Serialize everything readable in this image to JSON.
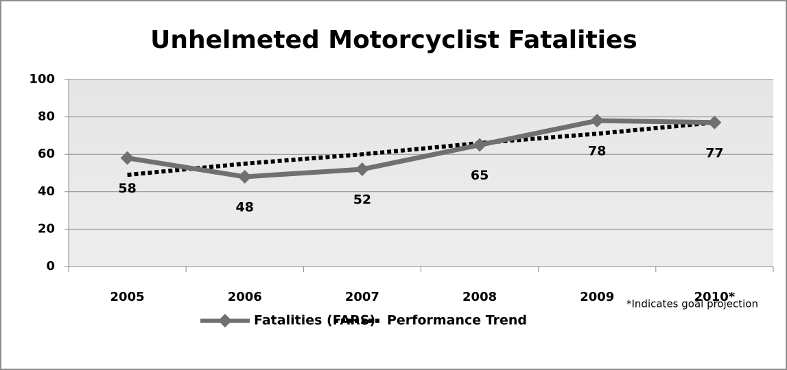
{
  "chart_data": {
    "type": "line",
    "title": "Unhelmeted Motorcyclist Fatalities",
    "categories": [
      "2005",
      "2006",
      "2007",
      "2008",
      "2009",
      "2010*"
    ],
    "series": [
      {
        "name": "Fatalities (FARS)",
        "color": "#707070",
        "style": "solid",
        "marker": "diamond",
        "values": [
          58,
          48,
          52,
          65,
          78,
          77
        ]
      },
      {
        "name": "Performance Trend",
        "color": "#000000",
        "style": "dotted",
        "values": [
          49,
          55,
          60,
          66,
          71,
          77
        ]
      }
    ],
    "ylim": [
      0,
      100
    ],
    "yticks": [
      0,
      20,
      40,
      60,
      80,
      100
    ],
    "grid": true,
    "annotation": "*Indicates goal projection",
    "legend": "bottom"
  }
}
